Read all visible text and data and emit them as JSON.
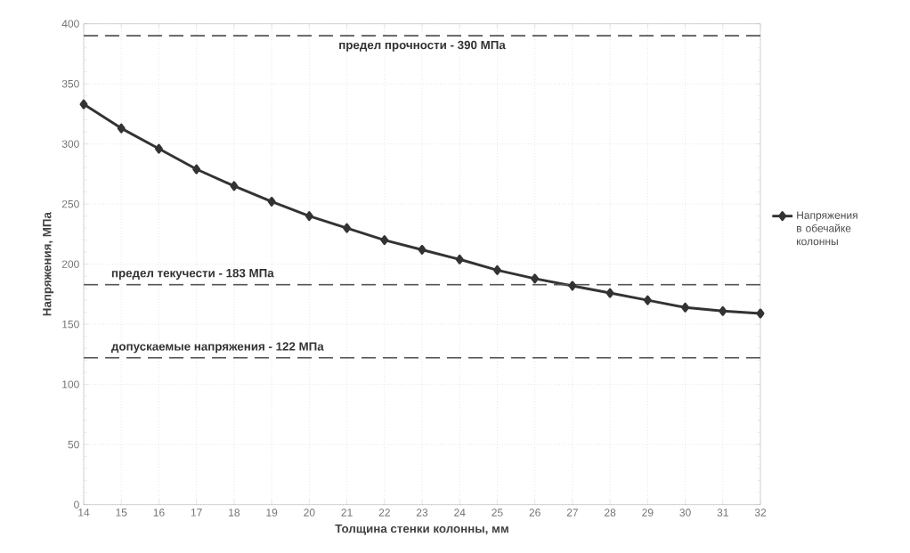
{
  "chart_data": {
    "type": "line",
    "xlabel": "Толщина стенки колонны, мм",
    "ylabel": "Напряжения, МПа",
    "x": [
      14,
      15,
      16,
      17,
      18,
      19,
      20,
      21,
      22,
      23,
      24,
      25,
      26,
      27,
      28,
      29,
      30,
      31,
      32
    ],
    "series": [
      {
        "name": "Напряжения в обечайке колонны",
        "color": "#333333",
        "values": [
          333,
          313,
          296,
          279,
          265,
          252,
          240,
          230,
          220,
          212,
          204,
          195,
          188,
          182,
          176,
          170,
          164,
          161,
          159
        ]
      }
    ],
    "xlim": [
      14,
      32
    ],
    "xticks": [
      14,
      15,
      16,
      17,
      18,
      19,
      20,
      21,
      22,
      23,
      24,
      25,
      26,
      27,
      28,
      29,
      30,
      31,
      32
    ],
    "ylim": [
      0,
      400
    ],
    "yticks": [
      0,
      50,
      100,
      150,
      200,
      250,
      300,
      350,
      400
    ],
    "ref_lines": [
      {
        "axis": "y",
        "value": 390,
        "label": "предел прочности - 390 МПа",
        "color": "#555555",
        "line_style": "dashed"
      },
      {
        "axis": "y",
        "value": 183,
        "label": "предел текучести - 183 МПа",
        "color": "#555555",
        "line_style": "dashed"
      },
      {
        "axis": "y",
        "value": 122,
        "label": "допускаемые напряжения - 122 МПа",
        "color": "#555555",
        "line_style": "dashed"
      }
    ],
    "grid": true,
    "legend": "right",
    "marker": "diamond",
    "line_style": "solid"
  }
}
